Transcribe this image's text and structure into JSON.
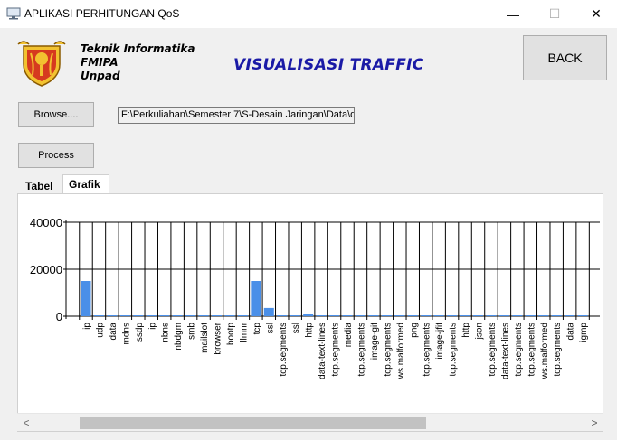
{
  "window": {
    "title": "APLIKASI PERHITUNGAN QoS",
    "minimize": "—",
    "maximize": "☐",
    "close": "✕"
  },
  "header": {
    "org_lines": [
      "Teknik Informatika",
      "FMIPA",
      "Unpad"
    ],
    "title": "VISUALISASI TRAFFIC",
    "title_color": "#1a1aa6"
  },
  "buttons": {
    "back": "BACK",
    "browse": "Browse....",
    "process": "Process"
  },
  "file_path": "F:\\Perkuliahan\\Semester 7\\S-Desain Jaringan\\Data\\d",
  "tabs": [
    "Tabel",
    "Grafik"
  ],
  "active_tab": "Grafik",
  "scrollbar": {
    "left": "<",
    "right": ">",
    "position": 0.08,
    "visible_fraction": 0.63
  },
  "chart_data": {
    "type": "bar",
    "bar_color": "#4a8fe8",
    "grid": true,
    "ylim": [
      0,
      40000
    ],
    "yticks": [
      "40000",
      "20000",
      "0"
    ],
    "ytick_values": [
      40000,
      20000,
      0
    ],
    "categories": [
      "ip",
      "udp",
      "data",
      "mdns",
      "ssdp",
      "ip",
      "nbns",
      "nbdgm",
      "smb",
      "mailslot",
      "browser",
      "bootp",
      "llmnr",
      "tcp",
      "ssl",
      "tcp.segments",
      "ssl",
      "http",
      "data-text-lines",
      "tcp.segments",
      "media",
      "tcp.segments",
      "image-gif",
      "tcp.segments",
      "ws.malformed",
      "png",
      "tcp.segments",
      "image-jfif",
      "tcp.segments",
      "http",
      "json",
      "tcp.segments",
      "data-text-lines",
      "tcp.segments",
      "tcp.segments",
      "ws.malformed",
      "tcp.segments",
      "data",
      "igmp"
    ],
    "values": [
      15000,
      200,
      150,
      100,
      100,
      100,
      100,
      100,
      100,
      100,
      100,
      100,
      100,
      15000,
      3500,
      100,
      100,
      800,
      100,
      100,
      100,
      100,
      100,
      100,
      100,
      100,
      100,
      100,
      100,
      100,
      100,
      100,
      100,
      100,
      100,
      100,
      100,
      100,
      100
    ]
  }
}
